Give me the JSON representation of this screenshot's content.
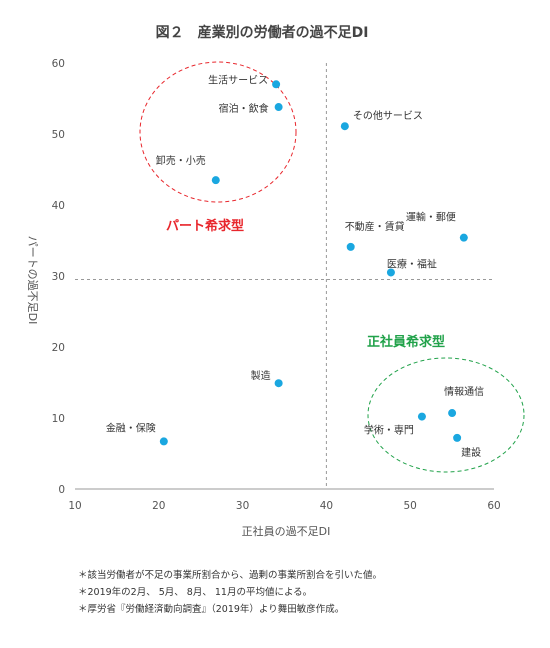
{
  "chart_data": {
    "type": "scatter",
    "title": "図２　産業別の労働者の過不足DI",
    "xlabel": "正社員の過不足DI",
    "ylabel": "パートの過不足DI",
    "xlim": [
      10,
      60
    ],
    "ylim": [
      0,
      60
    ],
    "xticks": [
      10,
      20,
      30,
      40,
      50,
      60
    ],
    "yticks": [
      0,
      10,
      20,
      30,
      40,
      50,
      60
    ],
    "grid": false,
    "point_color": "#1aa7e0",
    "reference_lines": {
      "x": 40,
      "y": 29.5
    },
    "points": [
      {
        "label": "生活サービス",
        "x": 34.0,
        "y": 57.0
      },
      {
        "label": "宿泊・飲食",
        "x": 34.3,
        "y": 53.8
      },
      {
        "label": "その他サービス",
        "x": 42.2,
        "y": 51.1
      },
      {
        "label": "卸売・小売",
        "x": 26.8,
        "y": 43.5
      },
      {
        "label": "運輸・郵便",
        "x": 56.4,
        "y": 35.4
      },
      {
        "label": "不動産・賃貸",
        "x": 42.9,
        "y": 34.1
      },
      {
        "label": "医療・福祉",
        "x": 47.7,
        "y": 30.5
      },
      {
        "label": "製造",
        "x": 34.3,
        "y": 14.9
      },
      {
        "label": "情報通信",
        "x": 55.0,
        "y": 10.7
      },
      {
        "label": "学術・専門",
        "x": 51.4,
        "y": 10.2
      },
      {
        "label": "建設",
        "x": 55.6,
        "y": 7.2
      },
      {
        "label": "金融・保険",
        "x": 20.6,
        "y": 6.7
      }
    ],
    "groups": [
      {
        "label": "パート希求型",
        "color": "#e8262c"
      },
      {
        "label": "正社員希求型",
        "color": "#21a24a"
      }
    ]
  },
  "notes": [
    "＊該当労働者が不足の事業所割合から、過剰の事業所割合を引いた値。",
    "＊2019年の2月、 5月、 8月、 11月の平均値による。",
    "＊厚労省『労働経済動向調査』（2019年）より舞田敏彦作成。"
  ]
}
